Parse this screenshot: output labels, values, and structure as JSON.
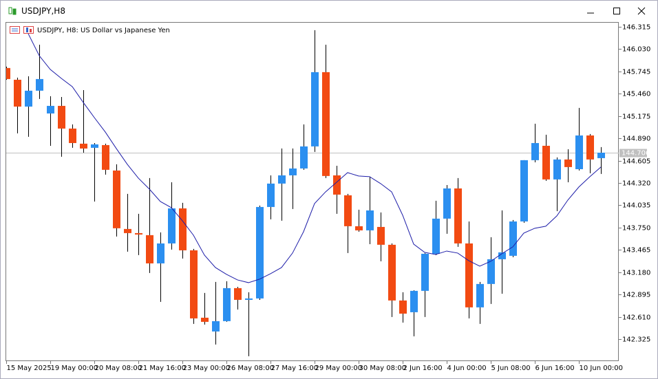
{
  "window": {
    "title": "USDJPY,H8"
  },
  "chart_data": {
    "type": "candlestick",
    "title": "USDJPY, H8:  US Dollar vs Japanese Yen",
    "categories": [
      "15 May 2025",
      null,
      null,
      null,
      "19 May 00:00",
      null,
      null,
      null,
      "20 May 08:00",
      null,
      null,
      null,
      "21 May 16:00",
      null,
      null,
      null,
      "23 May 00:00",
      null,
      null,
      null,
      "26 May 08:00",
      null,
      null,
      null,
      "27 May 16:00",
      null,
      null,
      null,
      "29 May 00:00",
      null,
      null,
      null,
      "30 May 08:00",
      null,
      null,
      null,
      "2 Jun 16:00",
      null,
      null,
      null,
      "4 Jun 00:00",
      null,
      null,
      null,
      "5 Jun 08:00",
      null,
      null,
      null,
      "6 Jun 16:00",
      null,
      null,
      null,
      "10 Jun 00:00",
      null,
      null
    ],
    "open": [
      145.789,
      145.639,
      145.296,
      145.499,
      145.208,
      145.305,
      145.015,
      144.822,
      144.769,
      144.804,
      144.479,
      143.732,
      143.679,
      143.653,
      143.292,
      143.547,
      143.995,
      143.459,
      142.598,
      142.422,
      142.554,
      142.976,
      142.826,
      142.844,
      144.013,
      144.312,
      144.417,
      144.505,
      144.787,
      145.736,
      144.417,
      144.162,
      143.767,
      143.714,
      143.758,
      143.53,
      142.818,
      142.668,
      142.941,
      143.415,
      143.864,
      144.25,
      143.547,
      142.73,
      143.029,
      143.345,
      143.389,
      143.828,
      144.611,
      144.795,
      144.365,
      144.62,
      144.496,
      144.927,
      144.637
    ],
    "high": [
      145.806,
      145.666,
      145.683,
      146.087,
      145.428,
      145.419,
      145.068,
      145.507,
      144.83,
      144.822,
      144.558,
      144.18,
      143.925,
      144.382,
      143.688,
      144.329,
      144.066,
      143.477,
      142.914,
      143.055,
      143.064,
      142.993,
      142.923,
      144.031,
      144.417,
      144.76,
      144.76,
      145.068,
      146.272,
      146.087,
      144.54,
      144.18,
      143.978,
      144.4,
      143.943,
      143.547,
      142.923,
      142.949,
      143.424,
      144.092,
      144.294,
      144.382,
      143.828,
      143.055,
      143.626,
      143.969,
      143.846,
      144.611,
      145.077,
      144.936,
      144.646,
      144.751,
      145.279,
      144.945,
      144.778
    ],
    "low": [
      145.639,
      144.954,
      144.91,
      145.393,
      144.795,
      144.655,
      144.769,
      144.707,
      144.083,
      144.426,
      143.635,
      143.442,
      143.398,
      143.169,
      142.8,
      143.468,
      143.354,
      142.519,
      142.51,
      142.255,
      142.545,
      142.703,
      142.106,
      142.826,
      143.855,
      143.837,
      143.987,
      144.488,
      144.716,
      144.382,
      143.925,
      143.424,
      143.697,
      143.538,
      143.319,
      142.607,
      142.536,
      142.36,
      142.607,
      143.398,
      143.67,
      143.503,
      142.589,
      142.519,
      142.774,
      142.905,
      143.371,
      143.811,
      144.584,
      144.347,
      143.96,
      144.329,
      144.479,
      144.444,
      144.435
    ],
    "close": [
      145.648,
      145.296,
      145.499,
      145.648,
      145.305,
      145.015,
      144.83,
      144.76,
      144.813,
      144.488,
      143.741,
      143.679,
      143.661,
      143.292,
      143.547,
      143.995,
      143.459,
      142.589,
      142.545,
      142.554,
      142.976,
      142.826,
      142.844,
      144.013,
      144.312,
      144.417,
      144.505,
      144.787,
      145.736,
      144.409,
      144.171,
      143.767,
      143.714,
      143.969,
      143.53,
      142.818,
      142.65,
      142.941,
      143.415,
      143.864,
      144.25,
      143.547,
      142.73,
      143.029,
      143.345,
      143.433,
      143.828,
      144.611,
      144.83,
      144.365,
      144.62,
      144.523,
      144.927,
      144.62,
      144.707
    ],
    "up_color": "#2b8ff0",
    "down_color": "#f24a12",
    "ma": {
      "color": "#1c1ca8",
      "values": [
        null,
        null,
        146.228,
        145.947,
        145.771,
        145.657,
        145.551,
        145.349,
        145.156,
        144.971,
        144.76,
        144.558,
        144.382,
        144.242,
        144.083,
        144.004,
        143.837,
        143.653,
        143.398,
        143.239,
        143.152,
        143.081,
        143.046,
        143.09,
        143.16,
        143.239,
        143.424,
        143.697,
        144.057,
        144.206,
        144.329,
        144.452,
        144.409,
        144.4,
        144.312,
        144.206,
        143.908,
        143.538,
        143.433,
        143.406,
        143.45,
        143.424,
        143.327,
        143.257,
        143.319,
        143.415,
        143.503,
        143.679,
        143.741,
        143.767,
        143.899,
        144.101,
        144.268,
        144.4,
        144.523
      ]
    },
    "current_price": 144.706,
    "ylim": [
      142.052,
      146.368
    ],
    "yticks": [
      146.315,
      {
        "value": 146.03,
        "label": "146.030"
      },
      145.745,
      {
        "value": 145.46,
        "label": "145.460"
      },
      145.175,
      {
        "value": 144.89,
        "label": "144.890"
      },
      144.605,
      {
        "value": 144.32,
        "label": "144.320"
      },
      144.035,
      {
        "value": 143.75,
        "label": "143.750"
      },
      143.465,
      {
        "value": 143.18,
        "label": "143.180"
      },
      142.895,
      {
        "value": 142.61,
        "label": "142.610"
      },
      142.325
    ]
  }
}
